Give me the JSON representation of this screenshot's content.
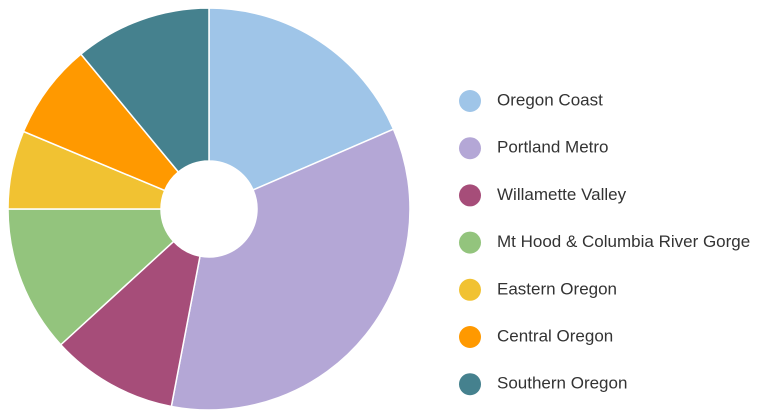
{
  "chart_data": {
    "type": "pie",
    "categories": [
      "Oregon Coast",
      "Portland Metro",
      "Willamette Valley",
      "Mt Hood & Columbia River Gorge",
      "Eastern Oregon",
      "Central Oregon",
      "Southern Oregon"
    ],
    "values": [
      18.5,
      34.5,
      10.2,
      11.8,
      6.3,
      7.7,
      11
    ],
    "colors": [
      "#9fc5e8",
      "#b4a7d6",
      "#a64d79",
      "#93c47d",
      "#f1c232",
      "#ff9900",
      "#45818e"
    ],
    "donut": true,
    "legend": "right"
  }
}
